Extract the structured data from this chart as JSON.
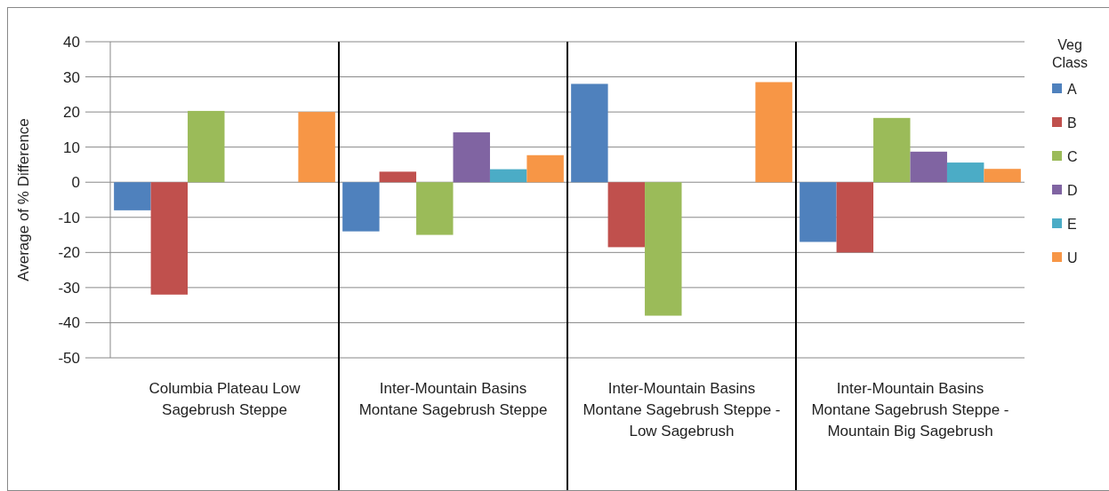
{
  "chart_data": {
    "type": "bar",
    "ylabel": "Average of % Difference",
    "legend_title": "Veg Class",
    "categories": [
      "Columbia Plateau Low Sagebrush Steppe",
      "Inter-Mountain Basins Montane Sagebrush Steppe",
      "Inter-Mountain Basins Montane Sagebrush Steppe - Low Sagebrush",
      "Inter-Mountain Basins Montane Sagebrush Steppe - Mountain Big Sagebrush"
    ],
    "series": [
      {
        "name": "A",
        "color": "#4f81bd",
        "values": [
          -8,
          -14,
          28,
          -17
        ]
      },
      {
        "name": "B",
        "color": "#c0504d",
        "values": [
          -32,
          3,
          -18.5,
          -20
        ]
      },
      {
        "name": "C",
        "color": "#9bbb59",
        "values": [
          20.3,
          -15,
          -38,
          18.3
        ]
      },
      {
        "name": "D",
        "color": "#8064a2",
        "values": [
          null,
          14.2,
          null,
          8.7
        ]
      },
      {
        "name": "E",
        "color": "#4bacc6",
        "values": [
          null,
          3.7,
          null,
          5.6
        ]
      },
      {
        "name": "U",
        "color": "#f79646",
        "values": [
          20,
          7.7,
          28.5,
          3.8
        ]
      }
    ],
    "ylim": [
      -50,
      40
    ],
    "yticks": [
      -50,
      -40,
      -30,
      -20,
      -10,
      0,
      10,
      20,
      30,
      40
    ],
    "grid": "y",
    "legend": "right"
  }
}
